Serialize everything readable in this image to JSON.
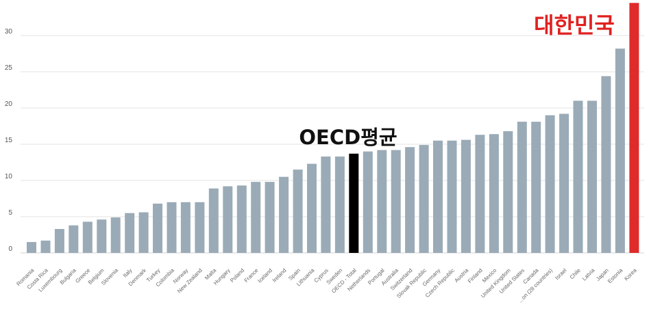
{
  "chart_data": {
    "type": "bar",
    "categories": [
      "Romania",
      "Costa Rica",
      "Luxembourg",
      "Bulgaria",
      "Greece",
      "Belgium",
      "Slovenia",
      "Italy",
      "Denmark",
      "Turkey",
      "Colombia",
      "Norway",
      "New Zealand",
      "Malta",
      "Hungary",
      "Poland",
      "France",
      "Iceland",
      "Ireland",
      "Spain",
      "Lithuania",
      "Cyprus",
      "Sweden",
      "OECD - Total",
      "Netherlands",
      "Portugal",
      "Australia",
      "Switzerland",
      "Slovak Republic",
      "Germany",
      "Czech Republic",
      "Austria",
      "Finland",
      "Mexico",
      "United Kingdom",
      "United States",
      "Canada",
      "...on (28 countries)",
      "Israel",
      "Chile",
      "Latvia",
      "Japan",
      "Estonia",
      "Korea"
    ],
    "values": [
      1.5,
      1.7,
      3.3,
      3.8,
      4.3,
      4.6,
      4.9,
      5.5,
      5.6,
      6.8,
      7.0,
      7.0,
      7.0,
      8.9,
      9.2,
      9.3,
      9.8,
      9.8,
      10.5,
      11.5,
      12.3,
      13.3,
      13.3,
      13.7,
      14.0,
      14.2,
      14.2,
      14.6,
      14.9,
      15.5,
      15.5,
      15.6,
      16.3,
      16.4,
      16.8,
      18.1,
      18.1,
      19.0,
      19.2,
      21.0,
      21.0,
      24.4,
      28.2,
      34.5
    ],
    "highlight": {
      "OECD - Total": "#000000",
      "Korea": "#e02b2b"
    },
    "bar_color": "#9aabb7",
    "yticks": [
      0,
      5,
      10,
      15,
      20,
      25,
      30
    ],
    "ylim": [
      0,
      35
    ],
    "grid": true,
    "legend": "none"
  },
  "annotations": {
    "oecd_label": "OECD평균",
    "korea_label": "대한민국"
  }
}
